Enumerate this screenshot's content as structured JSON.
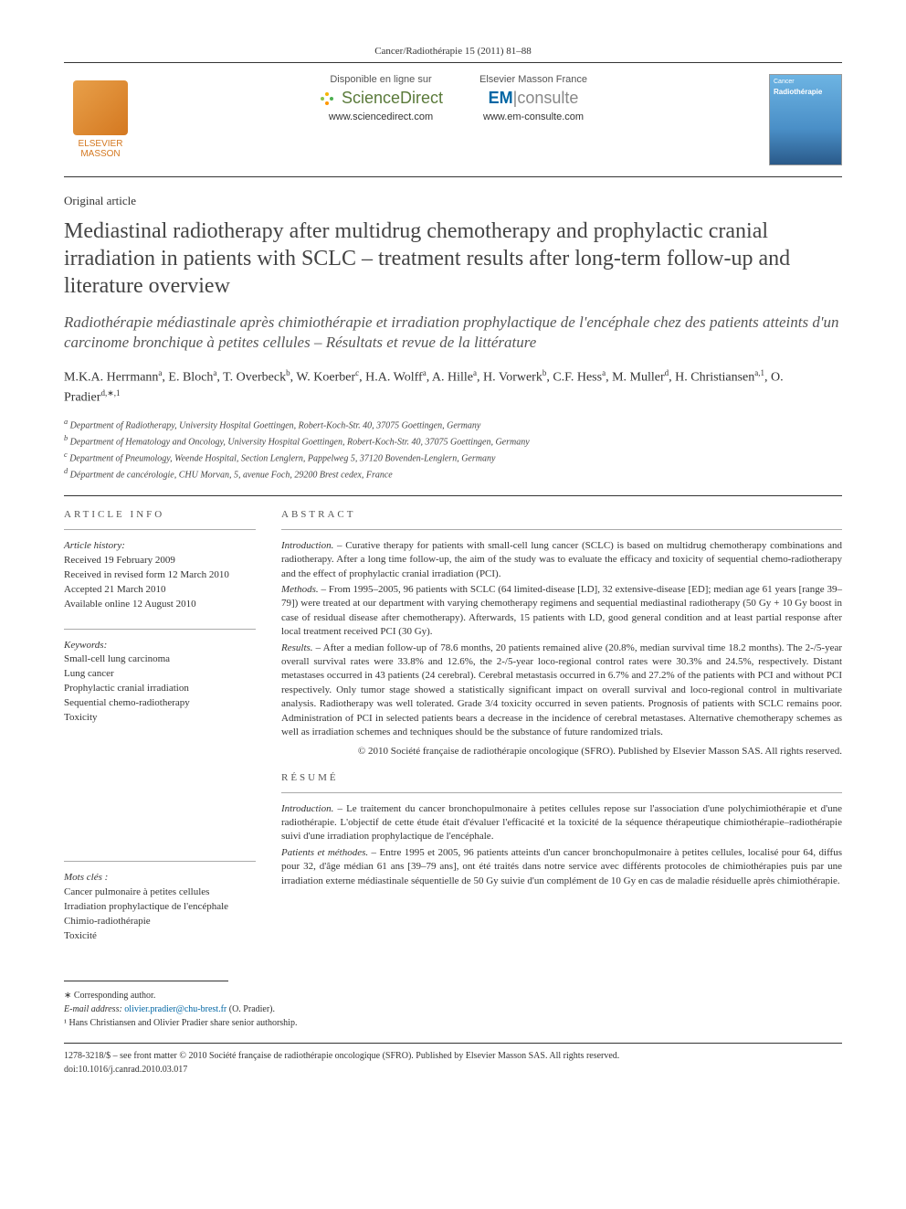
{
  "journal_line": "Cancer/Radiothérapie 15 (2011) 81–88",
  "header": {
    "elsevier_label1": "ELSEVIER",
    "elsevier_label2": "MASSON",
    "sd_top": "Disponible en ligne sur",
    "sd_brand": "ScienceDirect",
    "sd_url": "www.sciencedirect.com",
    "em_top": "Elsevier Masson France",
    "em_brand1": "EM",
    "em_brand2": "consulte",
    "em_url": "www.em-consulte.com",
    "cover_title": "Cancer",
    "cover_sub": "Radiothérapie"
  },
  "article_type": "Original article",
  "title_en": "Mediastinal radiotherapy after multidrug chemotherapy and prophylactic cranial irradiation in patients with SCLC – treatment results after long-term follow-up and literature overview",
  "title_fr": "Radiothérapie médiastinale après chimiothérapie et irradiation prophylactique de l'encéphale chez des patients atteints d'un carcinome bronchique à petites cellules – Résultats et revue de la littérature",
  "authors_html": "M.K.A. Herrmann<sup>a</sup>, E. Bloch<sup>a</sup>, T. Overbeck<sup>b</sup>, W. Koerber<sup>c</sup>, H.A. Wolff<sup>a</sup>, A. Hille<sup>a</sup>, H. Vorwerk<sup>b</sup>, C.F. Hess<sup>a</sup>, M. Muller<sup>d</sup>, H. Christiansen<sup>a,1</sup>, O. Pradier<sup>d,∗,1</sup>",
  "affiliations": [
    "a Department of Radiotherapy, University Hospital Goettingen, Robert-Koch-Str. 40, 37075 Goettingen, Germany",
    "b Department of Hematology and Oncology, University Hospital Goettingen, Robert-Koch-Str. 40, 37075 Goettingen, Germany",
    "c Department of Pneumology, Weende Hospital, Section Lenglern, Pappelweg 5, 37120 Bovenden-Lenglern, Germany",
    "d Départment de cancérologie, CHU Morvan, 5, avenue Foch, 29200 Brest cedex, France"
  ],
  "info": {
    "head": "article info",
    "history_label": "Article history:",
    "history": [
      "Received 19 February 2009",
      "Received in revised form 12 March 2010",
      "Accepted 21 March 2010",
      "Available online 12 August 2010"
    ],
    "keywords_label": "Keywords:",
    "keywords": [
      "Small-cell lung carcinoma",
      "Lung cancer",
      "Prophylactic cranial irradiation",
      "Sequential chemo-radiotherapy",
      "Toxicity"
    ],
    "mots_label": "Mots clés :",
    "mots": [
      "Cancer pulmonaire à petites cellules",
      "Irradiation prophylactique de l'encéphale",
      "Chimio-radiothérapie",
      "Toxicité"
    ]
  },
  "abstract": {
    "head": "abstract",
    "intro_label": "Introduction. –",
    "intro": "Curative therapy for patients with small-cell lung cancer (SCLC) is based on multidrug chemotherapy combinations and radiotherapy. After a long time follow-up, the aim of the study was to evaluate the efficacy and toxicity of sequential chemo-radiotherapy and the effect of prophylactic cranial irradiation (PCI).",
    "methods_label": "Methods. –",
    "methods": "From 1995–2005, 96 patients with SCLC (64 limited-disease [LD], 32 extensive-disease [ED]; median age 61 years [range 39–79]) were treated at our department with varying chemotherapy regimens and sequential mediastinal radiotherapy (50 Gy + 10 Gy boost in case of residual disease after chemotherapy). Afterwards, 15 patients with LD, good general condition and at least partial response after local treatment received PCI (30 Gy).",
    "results_label": "Results. –",
    "results": "After a median follow-up of 78.6 months, 20 patients remained alive (20.8%, median survival time 18.2 months). The 2-/5-year overall survival rates were 33.8% and 12.6%, the 2-/5-year loco-regional control rates were 30.3% and 24.5%, respectively. Distant metastases occurred in 43 patients (24 cerebral). Cerebral metastasis occurred in 6.7% and 27.2% of the patients with PCI and without PCI respectively. Only tumor stage showed a statistically significant impact on overall survival and loco-regional control in multivariate analysis. Radiotherapy was well tolerated. Grade 3/4 toxicity occurred in seven patients. Prognosis of patients with SCLC remains poor. Administration of PCI in selected patients bears a decrease in the incidence of cerebral metastases. Alternative chemotherapy schemes as well as irradiation schemes and techniques should be the substance of future randomized trials.",
    "copyright": "© 2010 Société française de radiothérapie oncologique (SFRO). Published by Elsevier Masson SAS. All rights reserved."
  },
  "resume": {
    "head": "résumé",
    "intro_label": "Introduction. –",
    "intro": "Le traitement du cancer bronchopulmonaire à petites cellules repose sur l'association d'une polychimiothérapie et d'une radiothérapie. L'objectif de cette étude était d'évaluer l'efficacité et la toxicité de la séquence thérapeutique chimiothérapie–radiothérapie suivi d'une irradiation prophylactique de l'encéphale.",
    "methods_label": "Patients et méthodes. –",
    "methods": "Entre 1995 et 2005, 96 patients atteints d'un cancer bronchopulmonaire à petites cellules, localisé pour 64, diffus pour 32, d'âge médian 61 ans [39–79 ans], ont été traités dans notre service avec différents protocoles de chimiothérapies puis par une irradiation externe médiastinale séquentielle de 50 Gy suivie d'un complément de 10 Gy en cas de maladie résiduelle après chimiothérapie."
  },
  "footnotes": {
    "corr": "∗ Corresponding author.",
    "email_label": "E-mail address:",
    "email": "olivier.pradier@chu-brest.fr",
    "email_who": "(O. Pradier).",
    "note1": "¹ Hans Christiansen and Olivier Pradier share senior authorship."
  },
  "bottom": {
    "line1": "1278-3218/$ – see front matter © 2010 Société française de radiothérapie oncologique (SFRO). Published by Elsevier Masson SAS. All rights reserved.",
    "doi": "doi:10.1016/j.canrad.2010.03.017"
  },
  "colors": {
    "elsevier_orange": "#d47820",
    "sd_green": "#5a7a3a",
    "em_blue": "#0066a4",
    "cover_blue": "#4a8fc7",
    "text": "#333333",
    "rule": "#333333"
  }
}
